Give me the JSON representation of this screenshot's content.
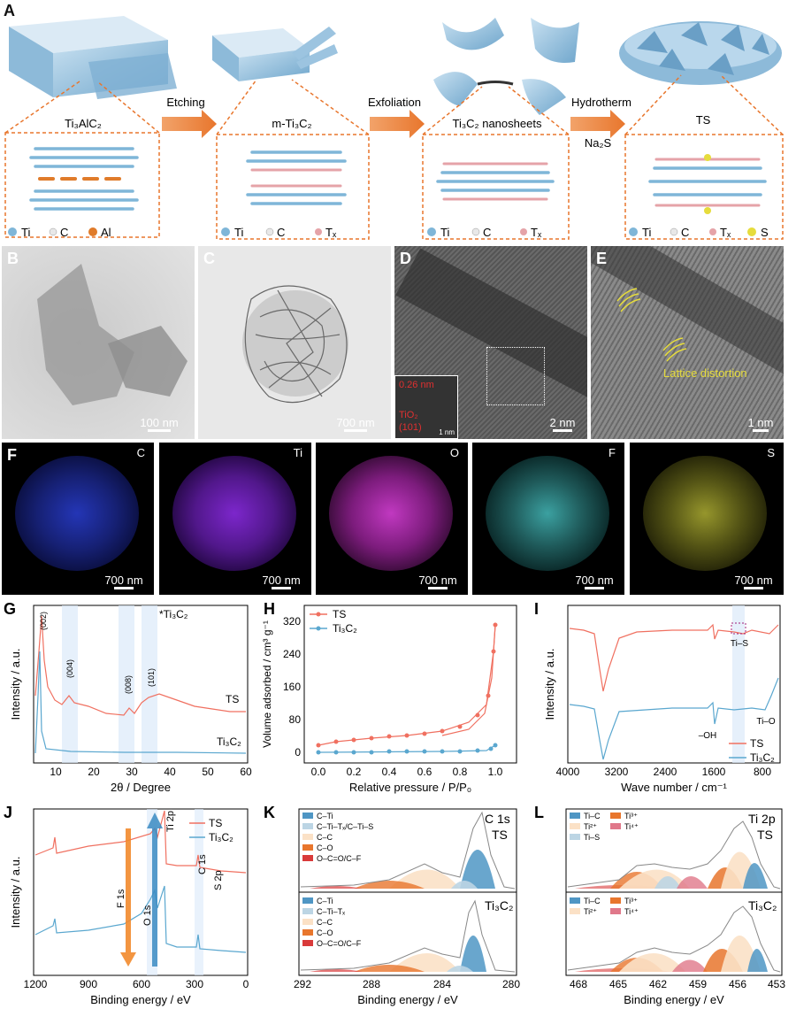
{
  "panelA": {
    "label": "A",
    "materials": [
      "Ti₃AlC₂",
      "m-Ti₃C₂",
      "Ti₃C₂ nanosheets",
      "TS"
    ],
    "steps": [
      "Etching",
      "Exfoliation",
      "Hydrotherm"
    ],
    "reagent": "Na₂S",
    "legend1": [
      "Ti",
      "C",
      "Al"
    ],
    "legend2": [
      "Ti",
      "C",
      "Tₓ"
    ],
    "legend3": [
      "Ti",
      "C",
      "Tₓ"
    ],
    "legend4": [
      "Ti",
      "C",
      "Tₓ",
      "S"
    ],
    "colors": {
      "ti": "#7fb6d8",
      "c": "#e8e8e8",
      "al": "#e07b2a",
      "tx": "#e5a3a8",
      "s": "#e6dc3c",
      "arrow": "#e8762d",
      "box": "#e8762d"
    }
  },
  "panelB": {
    "label": "B",
    "scale": "100 nm"
  },
  "panelC": {
    "label": "C",
    "scale": "700 nm"
  },
  "panelD": {
    "label": "D",
    "scale": "2 nm",
    "inset_d": "0.26 nm",
    "inset_phase": "TiO₂",
    "inset_plane": "(101)",
    "inset_scale": "1 nm"
  },
  "panelE": {
    "label": "E",
    "scale": "1 nm",
    "annotation": "Lattice distortion"
  },
  "panelF": {
    "label": "F",
    "maps": [
      {
        "element": "C",
        "scale": "700 nm",
        "color": "#2a3fd6"
      },
      {
        "element": "Ti",
        "scale": "700 nm",
        "color": "#8a2be2"
      },
      {
        "element": "O",
        "scale": "700 nm",
        "color": "#d63fd6"
      },
      {
        "element": "F",
        "scale": "700 nm",
        "color": "#4fd6d6"
      },
      {
        "element": "S",
        "scale": "700 nm",
        "color": "#d6d63f"
      }
    ]
  },
  "panelG": {
    "label": "G",
    "ylabel": "Intensity / a.u.",
    "xlabel": "2θ / Degree",
    "xticks": [
      "10",
      "20",
      "30",
      "40",
      "50",
      "60"
    ],
    "legend": "*Ti₃C₂",
    "series": [
      "TS",
      "Ti₃C₂"
    ],
    "peaks": [
      "(002)",
      "(004)",
      "(008)",
      "(101)"
    ]
  },
  "panelH": {
    "label": "H",
    "ylabel": "Volume adsorbed / cm³ g⁻¹",
    "xlabel": "Relative pressure / P/P₀",
    "xticks": [
      "0.0",
      "0.2",
      "0.4",
      "0.6",
      "0.8",
      "1.0"
    ],
    "yticks": [
      "0",
      "80",
      "160",
      "240",
      "320"
    ],
    "series": [
      "TS",
      "Ti₃C₂"
    ]
  },
  "panelI": {
    "label": "I",
    "ylabel": "Intensity / a.u.",
    "xlabel": "Wave number / cm⁻¹",
    "xticks": [
      "4000",
      "3200",
      "2400",
      "1600",
      "800"
    ],
    "annotations": [
      "Ti–S",
      "–OH",
      "Ti–O"
    ],
    "series": [
      "TS",
      "Ti₃C₂"
    ]
  },
  "panelJ": {
    "label": "J",
    "ylabel": "Intensity / a.u.",
    "xlabel": "Binding energy / eV",
    "xticks": [
      "1200",
      "900",
      "600",
      "300",
      "0"
    ],
    "annotations": [
      "F 1s",
      "O 1s",
      "Ti 2p",
      "C 1s",
      "S 2p"
    ],
    "series": [
      "TS",
      "Ti₃C₂"
    ]
  },
  "panelK": {
    "label": "K",
    "xlabel": "Binding energy / eV",
    "xticks": [
      "292",
      "288",
      "284",
      "280"
    ],
    "title": "C 1s",
    "top": "TS",
    "bottom": "Ti₃C₂",
    "legend_top": [
      "C–Ti",
      "C–Ti–Tₓ/C–Ti–S",
      "C–C",
      "C–O",
      "O–C=O/C–F"
    ],
    "legend_bottom": [
      "C–Ti",
      "C–Ti–Tₓ",
      "C–C",
      "C–O",
      "O–C=O/C–F"
    ]
  },
  "panelL": {
    "label": "L",
    "xlabel": "Binding energy / eV",
    "xticks": [
      "468",
      "465",
      "462",
      "459",
      "456",
      "453"
    ],
    "title": "Ti 2p",
    "top": "TS",
    "bottom": "Ti₃C₂",
    "legend_top": [
      "Ti–C",
      "Ti²⁺",
      "Ti–S",
      "Ti³⁺",
      "Ti⁴⁺"
    ],
    "legend_bottom": [
      "Ti–C",
      "Ti²⁺",
      "Ti³⁺",
      "Ti⁴⁺"
    ]
  }
}
